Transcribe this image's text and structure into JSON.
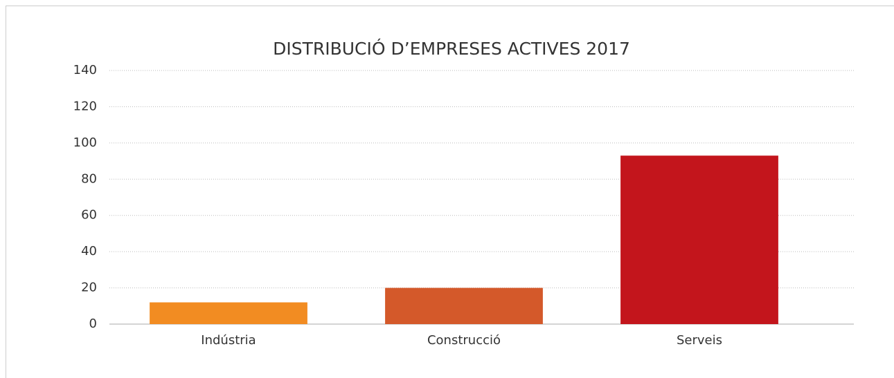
{
  "chart_data": {
    "type": "bar",
    "title": "DISTRIBUCIÓ D’EMPRESES ACTIVES 2017",
    "categories": [
      "Indústria",
      "Construcció",
      "Serveis"
    ],
    "values": [
      12,
      20,
      93
    ],
    "colors": [
      "#f28c22",
      "#d4592a",
      "#c3151c"
    ],
    "ylim": [
      0,
      140
    ],
    "yticks": [
      0,
      20,
      40,
      60,
      80,
      100,
      120,
      140
    ],
    "grid": true
  }
}
